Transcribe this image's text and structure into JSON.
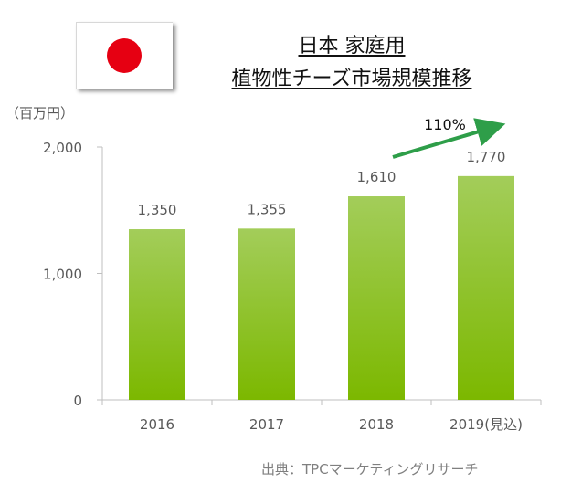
{
  "title_line1": "日本 家庭用",
  "title_line2": "植物性チーズ市場規模推移",
  "unit_label": "（百万円）",
  "growth_label": "110%",
  "source": "出典：TPCマーケティングリサーチ",
  "colors": {
    "bar_top": "#a3cd5a",
    "bar_bottom": "#7cb800",
    "arrow": "#2e9e49",
    "axis": "#bfbfbf",
    "tick_text": "#595959",
    "flag_red": "#e60012"
  },
  "chart_data": {
    "type": "bar",
    "categories": [
      "2016",
      "2017",
      "2018",
      "2019(見込)"
    ],
    "values": [
      1350,
      1355,
      1610,
      1770
    ],
    "value_labels": [
      "1,350",
      "1,355",
      "1,610",
      "1,770"
    ],
    "title": "日本 家庭用 植物性チーズ市場規模推移",
    "xlabel": "",
    "ylabel": "（百万円）",
    "ylim": [
      0,
      2000
    ],
    "yticks": [
      0,
      1000,
      2000
    ],
    "ytick_labels": [
      "0",
      "1,000",
      "2,000"
    ],
    "grid": false,
    "legend": "none",
    "annotation": "110%"
  }
}
